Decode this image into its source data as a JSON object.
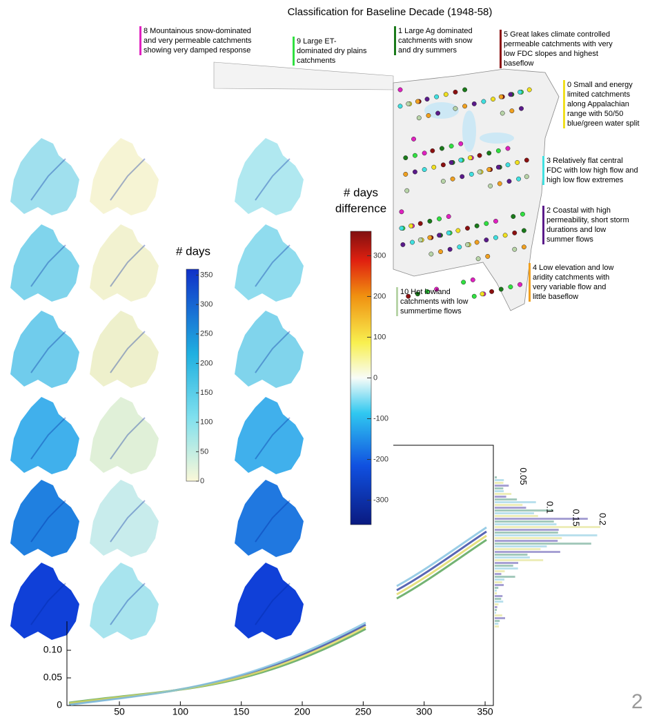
{
  "map": {
    "title": "Classification for Baseline Decade (1948-58)",
    "classes": [
      {
        "color": "#e020c0",
        "lines": [
          "8 Mountainous snow-dominated",
          "and very permeable catchments",
          "showing very damped response"
        ]
      },
      {
        "color": "#30e040",
        "lines": [
          "9 Large ET-",
          "dominated dry plains",
          "catchments"
        ]
      },
      {
        "color": "#1a7a1a",
        "lines": [
          "1 Large Ag dominated",
          "catchments with snow",
          "and dry summers"
        ]
      },
      {
        "color": "#8b1010",
        "lines": [
          "5 Great lakes climate controlled",
          "permeable catchments with very",
          "low FDC slopes and highest",
          "baseflow"
        ]
      },
      {
        "color": "#f0e020",
        "lines": [
          "0 Small and energy",
          "limited catchments",
          "along Appalachian",
          "range with 50/50",
          "blue/green water split"
        ]
      },
      {
        "color": "#40e0e0",
        "lines": [
          "3 Relatively flat central",
          "FDC with low high flow and",
          "high low flow extremes"
        ]
      },
      {
        "color": "#5a1a8a",
        "lines": [
          "2 Coastal with high",
          "permeability, short storm",
          "durations and low",
          "summer flows"
        ]
      },
      {
        "color": "#f0a020",
        "lines": [
          "4 Low elevation and low",
          "aridity catchments with",
          "very variable flow and",
          "little baseflow"
        ]
      },
      {
        "color": "#b8d4a8",
        "lines": [
          "10 Hot lowland",
          "catchments with low",
          "summertime flows"
        ]
      }
    ]
  },
  "colorbar_days": {
    "title": "# days",
    "ticks": [
      0,
      50,
      100,
      150,
      200,
      250,
      300,
      350
    ],
    "lim": [
      0,
      360
    ]
  },
  "colorbar_difference": {
    "title": [
      "# days",
      "difference"
    ],
    "ticks": [
      -300,
      -200,
      -100,
      0,
      100,
      200,
      300
    ],
    "lim": [
      -360,
      360
    ]
  },
  "cdf_chart": {
    "xticks": [
      50,
      100,
      150,
      200,
      250,
      300,
      350
    ],
    "yticks": [
      0,
      {
        "value": 0.05,
        "label": "0.05"
      },
      {
        "value": 0.1,
        "label": "0.10"
      }
    ]
  },
  "histogram": {
    "ticks": [
      0.05,
      0.1,
      0.15,
      0.2
    ]
  },
  "page_number": "2"
}
